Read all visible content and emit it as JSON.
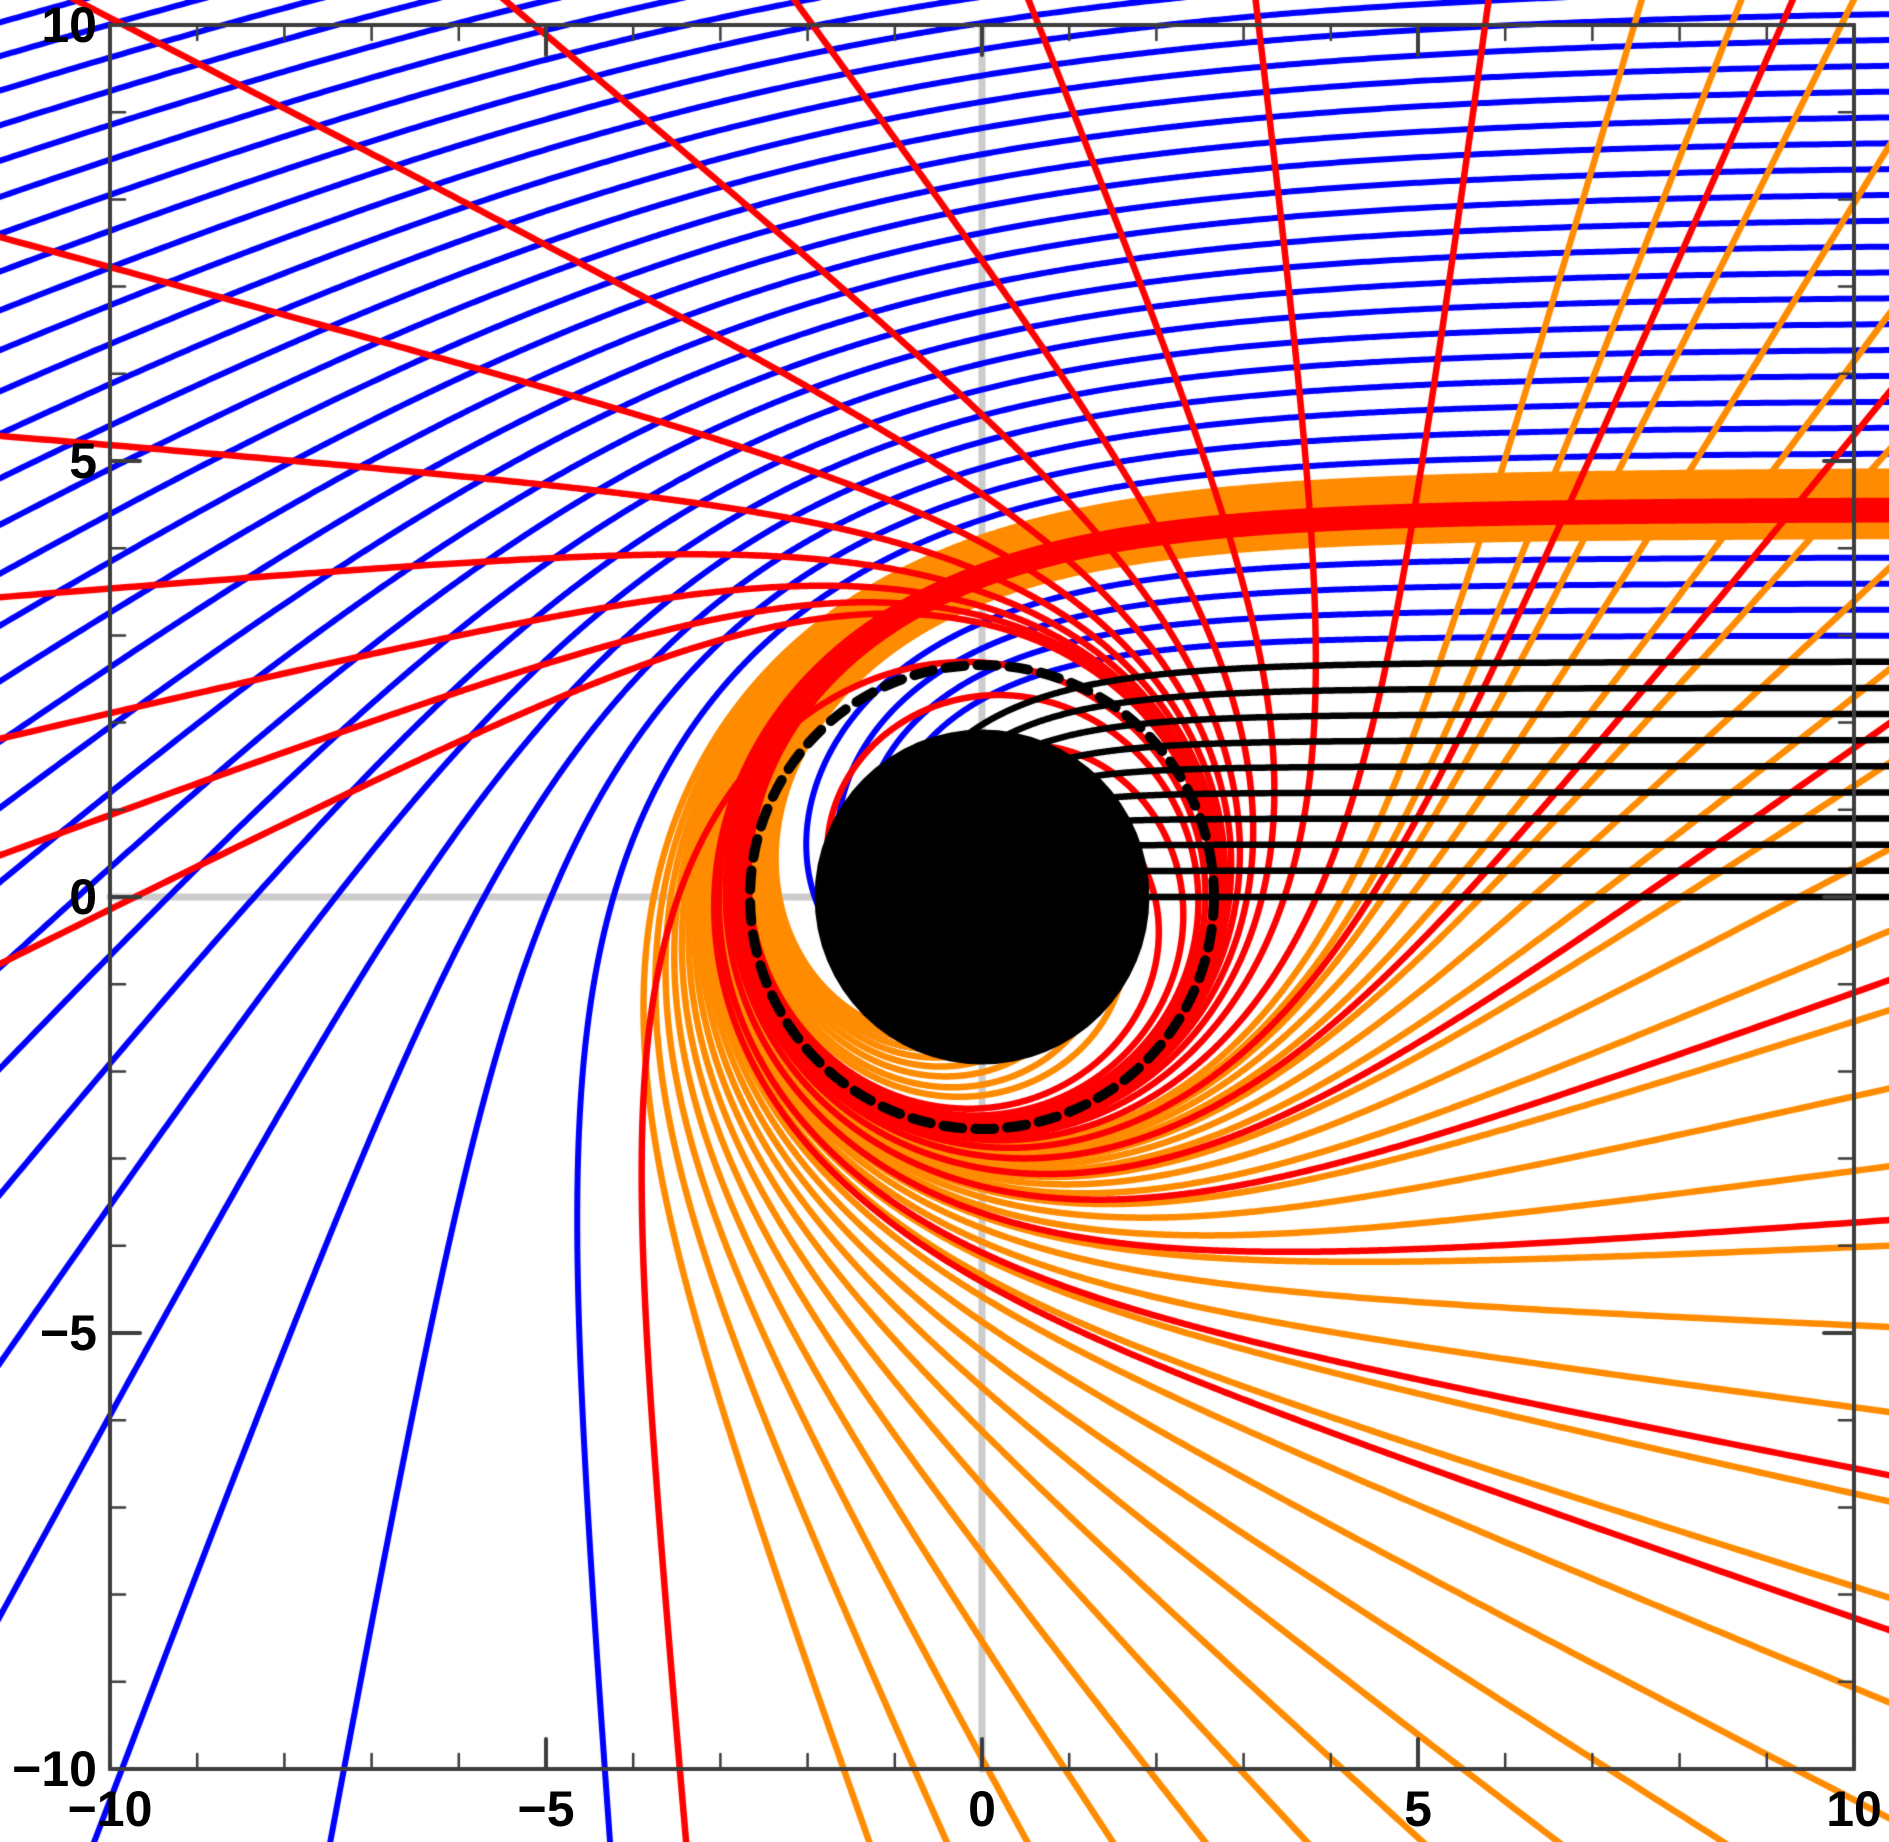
{
  "chart_data": {
    "type": "line",
    "subject": "photon-trajectories-around-black-hole",
    "axes": {
      "xlim": [
        -10,
        10
      ],
      "ylim": [
        -10,
        10
      ],
      "major_ticks": [
        -10,
        -5,
        0,
        5,
        10
      ],
      "x_tick_labels": [
        "−10",
        "−5",
        "0",
        "5",
        "10"
      ],
      "y_tick_labels": [
        "−10",
        "−5",
        "0",
        "5",
        "10"
      ],
      "minor_tick_step": 1,
      "grid": false,
      "frame_color": "#3D3D3D",
      "tick_color": "#3D3D3D",
      "axis_line_color": "#CCCCCC",
      "axis_line_width": 7,
      "frame_width": 4,
      "major_tick_len": 30,
      "minor_tick_len": 15
    },
    "black_hole": {
      "center": [
        0,
        0
      ],
      "disk_radius": 1.92,
      "color": "#000000"
    },
    "photon_sphere_circle": {
      "center": [
        0,
        0
      ],
      "radius": 2.66,
      "line_style": "dashed",
      "dash": [
        19,
        13
      ],
      "line_width": 10,
      "color": "#000000"
    },
    "physics": {
      "model": "schwarzschild-null-geodesic",
      "M": 0.84,
      "critical_impact_parameter": 4.3648,
      "rays_start_x": 30,
      "integration_step": 0.004,
      "capture_radius": 1.45,
      "escape_radius": 33
    },
    "series": [
      {
        "name": "weakly-deflected-rays",
        "color": "#0000FF",
        "line_width": 6,
        "impact_parameters": [
          3.0,
          3.3,
          3.6,
          3.9,
          4.2,
          5.1,
          5.4,
          5.7,
          6.0,
          6.3,
          6.6,
          6.9,
          7.2,
          7.5,
          7.8,
          8.1,
          8.4,
          8.7,
          9.0,
          9.3,
          9.6,
          9.9,
          10.2,
          10.5,
          10.8,
          11.1,
          11.4,
          11.7,
          12.0,
          12.3,
          12.6,
          12.9,
          13.2,
          13.5,
          13.8,
          14.1,
          14.4,
          14.7,
          15.0
        ]
      },
      {
        "name": "lensing-band-rays",
        "color": "#FF8C00",
        "line_width": 6.5,
        "impact_parameters": [
          4.15,
          4.175,
          4.2,
          4.225,
          4.25,
          4.275,
          4.3,
          4.32,
          4.3978,
          4.4011,
          4.4048,
          4.4088,
          4.4132,
          4.418,
          4.4234,
          4.4292,
          4.4357,
          4.4428,
          4.4506,
          4.4592,
          4.4687,
          4.4791,
          4.4906,
          4.5032,
          4.5171,
          4.5323,
          4.5491,
          4.5676,
          4.588,
          4.6104,
          4.635,
          4.6621,
          4.6919,
          4.7247,
          4.7608,
          4.8005,
          4.8442,
          4.8923
        ]
      },
      {
        "name": "photon-ring-rays",
        "color": "#FF0000",
        "line_width": 6.5,
        "impact_parameters": [
          4.3428,
          4.3548,
          4.3608,
          4.3633,
          4.3657,
          4.3661,
          4.3666,
          4.3673,
          4.3682,
          4.3694,
          4.3711,
          4.3733,
          4.3763,
          4.3803,
          4.3858,
          4.3928,
          4.4028,
          4.4158,
          4.4328,
          4.4558,
          4.4868,
          4.5278,
          4.5548
        ]
      },
      {
        "name": "captured-rays",
        "color": "#000000",
        "line_width": 6.5,
        "impact_parameters": [
          0,
          0.3,
          0.6,
          0.9,
          1.2,
          1.5,
          1.8,
          2.1,
          2.4,
          2.7
        ]
      }
    ],
    "legend": {
      "visible": false
    }
  },
  "layout_note": "square plot frame with inward ticks, labels on left and bottom only"
}
